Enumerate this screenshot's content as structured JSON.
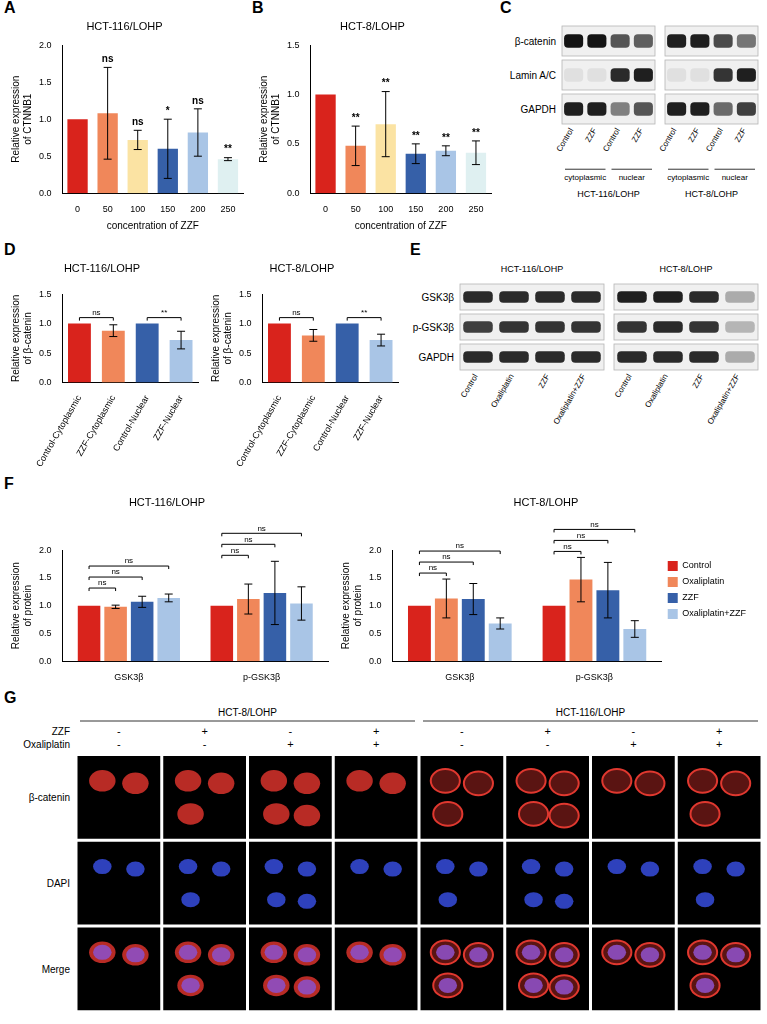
{
  "chart_data": [
    {
      "panel": "A",
      "type": "bar",
      "title": "HCT-116/LOHP",
      "x_label": "concentration of ZZF",
      "y_label": "Relative expression of CTNNB1",
      "categories": [
        "0",
        "50",
        "100",
        "150",
        "200",
        "250"
      ],
      "values": [
        1.0,
        1.08,
        0.72,
        0.6,
        0.82,
        0.46
      ],
      "errors": [
        0,
        0.62,
        0.13,
        0.4,
        0.32,
        0.02
      ],
      "significance": [
        null,
        "ns",
        "ns",
        "*",
        "ns",
        "**"
      ],
      "colors": [
        "#d9231c",
        "#f0875a",
        "#fbe3a3",
        "#3660a8",
        "#a9c5e6",
        "#dff0f1"
      ],
      "ylim": [
        0,
        2
      ],
      "yticks": [
        {
          "value": 0,
          "label": "0.0"
        },
        {
          "value": 0.5,
          "label": "0.5"
        },
        {
          "value": 1,
          "label": "1.0"
        },
        {
          "value": 1.5,
          "label": "1.5"
        },
        {
          "value": 2,
          "label": "2.0"
        }
      ],
      "grid": false
    },
    {
      "panel": "B",
      "type": "bar",
      "title": "HCT-8/LOHP",
      "x_label": "concentration of ZZF",
      "y_label": "Relative expression of CTNNB1",
      "categories": [
        "0",
        "50",
        "100",
        "150",
        "200",
        "250"
      ],
      "values": [
        1.0,
        0.48,
        0.7,
        0.4,
        0.43,
        0.41
      ],
      "errors": [
        0,
        0.2,
        0.33,
        0.1,
        0.05,
        0.12
      ],
      "significance": [
        null,
        "**",
        "**",
        "**",
        "**",
        "**"
      ],
      "colors": [
        "#d9231c",
        "#f0875a",
        "#fbe3a3",
        "#3660a8",
        "#a9c5e6",
        "#dff0f1"
      ],
      "ylim": [
        0,
        1.5
      ],
      "yticks": [
        {
          "value": 0,
          "label": "0.0"
        },
        {
          "value": 0.5,
          "label": "0.5"
        },
        {
          "value": 1,
          "label": "1.0"
        },
        {
          "value": 1.5,
          "label": "1.5"
        }
      ],
      "grid": false
    },
    {
      "panel": "D",
      "type": "bar",
      "title": "HCT-116/LOHP",
      "y_label": "Relative expression of β-catenin",
      "categories": [
        "Control-Cytoplasmic",
        "ZZF-Cytoplasmic",
        "Control-Nuclear",
        "ZZF-Nuclear"
      ],
      "values": [
        1.0,
        0.88,
        1.0,
        0.72
      ],
      "errors": [
        0,
        0.1,
        0,
        0.15
      ],
      "brackets": [
        {
          "from": "Control-Cytoplasmic",
          "to": "ZZF-Cytoplasmic",
          "label": "ns"
        },
        {
          "from": "Control-Nuclear",
          "to": "ZZF-Nuclear",
          "label": "**"
        }
      ],
      "colors": [
        "#d9231c",
        "#f0875a",
        "#3660a8",
        "#a9c5e6"
      ],
      "ylim": [
        0,
        1.5
      ],
      "yticks": [
        {
          "value": 0,
          "label": "0.0"
        },
        {
          "value": 0.5,
          "label": "0.5"
        },
        {
          "value": 1,
          "label": "1.0"
        },
        {
          "value": 1.5,
          "label": "1.5"
        }
      ],
      "grid": false
    },
    {
      "panel": "D",
      "type": "bar",
      "title": "HCT-8/LOHP",
      "y_label": "Relative expression of β-catenin",
      "categories": [
        "Control-Cytoplasmic",
        "ZZF-Cytoplasmic",
        "Control-Nuclear",
        "ZZF-Nuclear"
      ],
      "values": [
        1.0,
        0.8,
        1.0,
        0.72
      ],
      "errors": [
        0,
        0.1,
        0,
        0.1
      ],
      "brackets": [
        {
          "from": "Control-Cytoplasmic",
          "to": "ZZF-Cytoplasmic",
          "label": "ns"
        },
        {
          "from": "Control-Nuclear",
          "to": "ZZF-Nuclear",
          "label": "**"
        }
      ],
      "colors": [
        "#d9231c",
        "#f0875a",
        "#3660a8",
        "#a9c5e6"
      ],
      "ylim": [
        0,
        1.5
      ],
      "yticks": [
        {
          "value": 0,
          "label": "0.0"
        },
        {
          "value": 0.5,
          "label": "0.5"
        },
        {
          "value": 1,
          "label": "1.0"
        },
        {
          "value": 1.5,
          "label": "1.5"
        }
      ],
      "grid": false
    },
    {
      "panel": "F",
      "type": "bar",
      "title": "HCT-116/LOHP",
      "y_label": "Relative expression of protein",
      "categories": [
        "GSK3β",
        "p-GSK3β"
      ],
      "series": [
        {
          "name": "Control",
          "color": "#d9231c",
          "values": [
            1.0,
            1.0
          ],
          "errors": [
            0,
            0
          ]
        },
        {
          "name": "Oxaliplatin",
          "color": "#f0875a",
          "values": [
            0.98,
            1.12
          ],
          "errors": [
            0.03,
            0.27
          ]
        },
        {
          "name": "ZZF",
          "color": "#3660a8",
          "values": [
            1.07,
            1.23
          ],
          "errors": [
            0.1,
            0.57
          ]
        },
        {
          "name": "Oxaliplatin+ZZF",
          "color": "#a9c5e6",
          "values": [
            1.14,
            1.04
          ],
          "errors": [
            0.07,
            0.3
          ]
        }
      ],
      "brackets": [
        {
          "category": "GSK3β",
          "from": "Control",
          "to": "Oxaliplatin",
          "label": "ns"
        },
        {
          "category": "GSK3β",
          "from": "Control",
          "to": "ZZF",
          "label": "ns"
        },
        {
          "category": "GSK3β",
          "from": "Control",
          "to": "Oxaliplatin+ZZF",
          "label": "ns"
        },
        {
          "category": "p-GSK3β",
          "from": "Control",
          "to": "Oxaliplatin",
          "label": "ns"
        },
        {
          "category": "p-GSK3β",
          "from": "Control",
          "to": "ZZF",
          "label": "ns"
        },
        {
          "category": "p-GSK3β",
          "from": "Control",
          "to": "Oxaliplatin+ZZF",
          "label": "ns"
        }
      ],
      "ylim": [
        0,
        2
      ],
      "yticks": [
        {
          "value": 0,
          "label": "0.0"
        },
        {
          "value": 0.5,
          "label": "0.5"
        },
        {
          "value": 1,
          "label": "1.0"
        },
        {
          "value": 1.5,
          "label": "1.5"
        },
        {
          "value": 2,
          "label": "2.0"
        }
      ],
      "grid": false
    },
    {
      "panel": "F",
      "type": "bar",
      "title": "HCT-8/LOHP",
      "y_label": "Relative expression of protein",
      "categories": [
        "GSK3β",
        "p-GSK3β"
      ],
      "series": [
        {
          "name": "Control",
          "color": "#d9231c",
          "values": [
            1.0,
            1.0
          ],
          "errors": [
            0,
            0
          ]
        },
        {
          "name": "Oxaliplatin",
          "color": "#f0875a",
          "values": [
            1.13,
            1.47
          ],
          "errors": [
            0.35,
            0.4
          ]
        },
        {
          "name": "ZZF",
          "color": "#3660a8",
          "values": [
            1.12,
            1.28
          ],
          "errors": [
            0.28,
            0.5
          ]
        },
        {
          "name": "Oxaliplatin+ZZF",
          "color": "#a9c5e6",
          "values": [
            0.68,
            0.58
          ],
          "errors": [
            0.1,
            0.15
          ]
        }
      ],
      "brackets": [
        {
          "category": "GSK3β",
          "from": "Control",
          "to": "Oxaliplatin",
          "label": "ns"
        },
        {
          "category": "GSK3β",
          "from": "Control",
          "to": "ZZF",
          "label": "ns"
        },
        {
          "category": "GSK3β",
          "from": "Control",
          "to": "Oxaliplatin+ZZF",
          "label": "ns"
        },
        {
          "category": "p-GSK3β",
          "from": "Control",
          "to": "Oxaliplatin",
          "label": "ns"
        },
        {
          "category": "p-GSK3β",
          "from": "Control",
          "to": "ZZF",
          "label": "ns"
        },
        {
          "category": "p-GSK3β",
          "from": "Control",
          "to": "Oxaliplatin+ZZF",
          "label": "ns"
        }
      ],
      "ylim": [
        0,
        2
      ],
      "yticks": [
        {
          "value": 0,
          "label": "0.0"
        },
        {
          "value": 0.5,
          "label": "0.5"
        },
        {
          "value": 1,
          "label": "1.0"
        },
        {
          "value": 1.5,
          "label": "1.5"
        },
        {
          "value": 2,
          "label": "2.0"
        }
      ],
      "legend": "right",
      "grid": false
    }
  ],
  "blots": [
    {
      "panel": "C",
      "rows": [
        "β-catenin",
        "Lamin A/C",
        "GAPDH"
      ],
      "blots": [
        {
          "cell_line": "HCT-116/LOHP",
          "lanes": [
            "Control",
            "ZZF",
            "Control",
            "ZZF"
          ],
          "groups": [
            "cytoplasmic",
            "nuclear"
          ],
          "intensity": [
            [
              1.0,
              1.0,
              0.7,
              0.65
            ],
            [
              0.05,
              0.05,
              0.9,
              0.95
            ],
            [
              0.95,
              0.95,
              0.5,
              0.7
            ]
          ]
        },
        {
          "cell_line": "HCT-8/LOHP",
          "lanes": [
            "Control",
            "ZZF",
            "Control",
            "ZZF"
          ],
          "groups": [
            "cytoplasmic",
            "nuclear"
          ],
          "intensity": [
            [
              0.95,
              0.95,
              0.75,
              0.55
            ],
            [
              0.05,
              0.05,
              0.85,
              0.95
            ],
            [
              0.95,
              0.95,
              0.6,
              0.8
            ]
          ]
        }
      ]
    },
    {
      "panel": "E",
      "rows": [
        "GSK3β",
        "p-GSK3β",
        "GAPDH"
      ],
      "blots": [
        {
          "cell_line": "HCT-116/LOHP",
          "lanes": [
            "Control",
            "Oxaliplatin",
            "ZZF",
            "Oxaliplatin+ZZF"
          ],
          "intensity": [
            [
              0.9,
              0.9,
              0.9,
              0.9
            ],
            [
              0.8,
              0.85,
              0.85,
              0.85
            ],
            [
              0.9,
              0.9,
              0.9,
              0.9
            ]
          ]
        },
        {
          "cell_line": "HCT-8/LOHP",
          "lanes": [
            "Control",
            "Oxaliplatin",
            "ZZF",
            "Oxaliplatin+ZZF"
          ],
          "intensity": [
            [
              0.95,
              0.95,
              0.9,
              0.3
            ],
            [
              0.85,
              0.9,
              0.85,
              0.25
            ],
            [
              0.9,
              0.9,
              0.9,
              0.3
            ]
          ]
        }
      ]
    }
  ],
  "microscopy": {
    "panel": "G",
    "cell_lines": [
      "HCT-8/LOHP",
      "HCT-116/LOHP"
    ],
    "conditions": [
      {
        "label": "ZZF",
        "values": [
          "-",
          "+",
          "-",
          "+",
          "-",
          "+",
          "-",
          "+"
        ]
      },
      {
        "label": "Oxaliplatin",
        "values": [
          "-",
          "-",
          "+",
          "+",
          "-",
          "-",
          "+",
          "+"
        ]
      }
    ],
    "rows": [
      "β-catenin",
      "DAPI",
      "Merge"
    ]
  }
}
